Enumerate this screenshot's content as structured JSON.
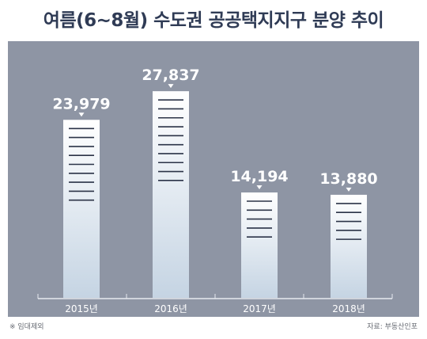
{
  "chart_data": {
    "type": "bar",
    "title": "여름(6~8월) 수도권 공공택지지구 분양 추이",
    "categories": [
      "2015년",
      "2016년",
      "2017년",
      "2018년"
    ],
    "values": [
      23979,
      27837,
      14194,
      13880
    ],
    "value_labels": [
      "23,979",
      "27,837",
      "14,194",
      "13,880"
    ],
    "ylim": [
      0,
      30000
    ],
    "grid": false,
    "legend": "none",
    "colors": {
      "panel": "#8e95a4",
      "bar_top": "#ffffff",
      "bar_bottom": "#c5d4e3",
      "stripe": "#2b3347",
      "label": "#ffffff",
      "title": "#2f3b55"
    }
  },
  "footnote": "※ 임대제외",
  "source": "자료: 부동산인포"
}
